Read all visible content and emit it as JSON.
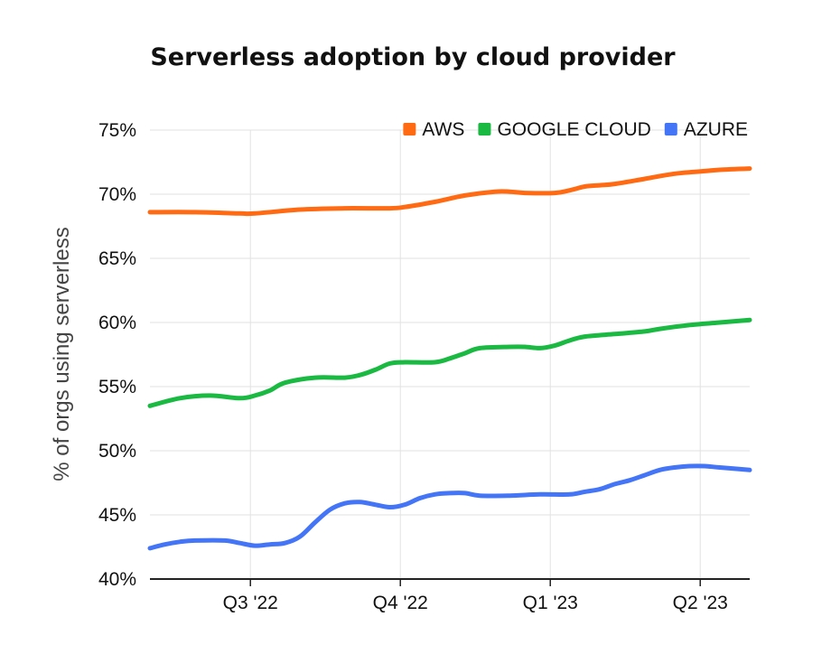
{
  "chart_data": {
    "type": "line",
    "title": "Serverless adoption by cloud provider",
    "xlabel": "",
    "ylabel": "% of orgs using serverless",
    "ylim": [
      40,
      75
    ],
    "y_ticks": [
      40,
      45,
      50,
      55,
      60,
      65,
      70,
      75
    ],
    "y_tick_labels": [
      "40%",
      "45%",
      "50%",
      "55%",
      "60%",
      "65%",
      "70%",
      "75%"
    ],
    "x_ticks": [
      {
        "label": "Q3 '22",
        "x": 6.7
      },
      {
        "label": "Q4 '22",
        "x": 16.7
      },
      {
        "label": "Q1 '23",
        "x": 26.7
      },
      {
        "label": "Q2 '23",
        "x": 36.7
      }
    ],
    "xlim": [
      0,
      40
    ],
    "grid": {
      "vertical": true,
      "horizontal": true
    },
    "legend_placement": "top-right",
    "series": [
      {
        "name": "AWS",
        "color": "#ff6a13",
        "points": [
          [
            0,
            68.6
          ],
          [
            3,
            68.6
          ],
          [
            6,
            68.5
          ],
          [
            7,
            68.5
          ],
          [
            10,
            68.8
          ],
          [
            13,
            68.9
          ],
          [
            16,
            68.9
          ],
          [
            17,
            69.0
          ],
          [
            19,
            69.4
          ],
          [
            21,
            69.9
          ],
          [
            23,
            70.2
          ],
          [
            24,
            70.2
          ],
          [
            25,
            70.1
          ],
          [
            27,
            70.1
          ],
          [
            28,
            70.3
          ],
          [
            29,
            70.6
          ],
          [
            30,
            70.7
          ],
          [
            31,
            70.8
          ],
          [
            33,
            71.2
          ],
          [
            35,
            71.6
          ],
          [
            37,
            71.8
          ],
          [
            38,
            71.9
          ],
          [
            40,
            72.0
          ]
        ]
      },
      {
        "name": "GOOGLE CLOUD",
        "color": "#19b942",
        "points": [
          [
            0,
            53.5
          ],
          [
            2,
            54.1
          ],
          [
            4,
            54.3
          ],
          [
            6,
            54.1
          ],
          [
            7,
            54.3
          ],
          [
            8,
            54.7
          ],
          [
            9,
            55.3
          ],
          [
            11,
            55.7
          ],
          [
            13,
            55.7
          ],
          [
            14,
            55.9
          ],
          [
            15,
            56.3
          ],
          [
            16,
            56.8
          ],
          [
            17,
            56.9
          ],
          [
            19,
            56.9
          ],
          [
            20,
            57.2
          ],
          [
            21,
            57.6
          ],
          [
            22,
            58.0
          ],
          [
            24,
            58.1
          ],
          [
            25,
            58.1
          ],
          [
            26,
            58.0
          ],
          [
            27,
            58.2
          ],
          [
            28,
            58.6
          ],
          [
            29,
            58.9
          ],
          [
            31,
            59.1
          ],
          [
            33,
            59.3
          ],
          [
            34,
            59.5
          ],
          [
            36,
            59.8
          ],
          [
            38,
            60.0
          ],
          [
            40,
            60.2
          ]
        ]
      },
      {
        "name": "AZURE",
        "color": "#4375f6",
        "points": [
          [
            0,
            42.4
          ],
          [
            1,
            42.7
          ],
          [
            2,
            42.9
          ],
          [
            3,
            43.0
          ],
          [
            5,
            43.0
          ],
          [
            6,
            42.8
          ],
          [
            7,
            42.6
          ],
          [
            8,
            42.7
          ],
          [
            9,
            42.8
          ],
          [
            10,
            43.3
          ],
          [
            11,
            44.4
          ],
          [
            12,
            45.4
          ],
          [
            13,
            45.9
          ],
          [
            14,
            46.0
          ],
          [
            15,
            45.8
          ],
          [
            16,
            45.6
          ],
          [
            17,
            45.8
          ],
          [
            18,
            46.3
          ],
          [
            19,
            46.6
          ],
          [
            20,
            46.7
          ],
          [
            21,
            46.7
          ],
          [
            22,
            46.5
          ],
          [
            24,
            46.5
          ],
          [
            26,
            46.6
          ],
          [
            28,
            46.6
          ],
          [
            29,
            46.8
          ],
          [
            30,
            47.0
          ],
          [
            31,
            47.4
          ],
          [
            32,
            47.7
          ],
          [
            33,
            48.1
          ],
          [
            34,
            48.5
          ],
          [
            35,
            48.7
          ],
          [
            36,
            48.8
          ],
          [
            37,
            48.8
          ],
          [
            38,
            48.7
          ],
          [
            40,
            48.5
          ]
        ]
      }
    ]
  }
}
